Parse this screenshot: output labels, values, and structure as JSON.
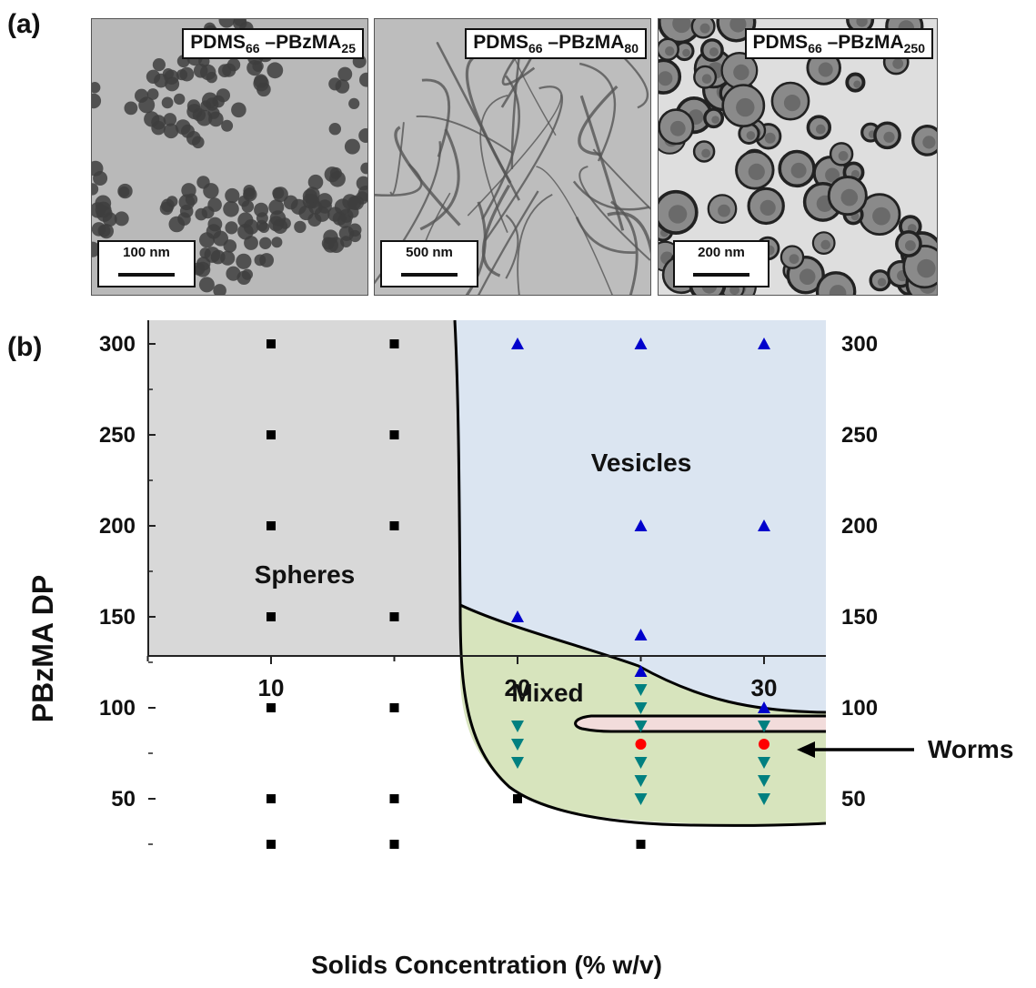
{
  "panel_a_label": "(a)",
  "panel_b_label": "(b)",
  "tem_images": [
    {
      "title_base": "PDMS",
      "title_sub1": "66",
      "title_mid": " –PBzMA",
      "title_sub2": "25",
      "scale": "100 nm",
      "morphology": "spheres"
    },
    {
      "title_base": "PDMS",
      "title_sub1": "66",
      "title_mid": " –PBzMA",
      "title_sub2": "80",
      "scale": "500 nm",
      "morphology": "worms"
    },
    {
      "title_base": "PDMS",
      "title_sub1": "66",
      "title_mid": " –PBzMA",
      "title_sub2": "250",
      "scale": "200 nm",
      "morphology": "vesicles"
    }
  ],
  "colors": {
    "spheres_region": "#d8d8d8",
    "vesicles_region": "#dbe5f1",
    "mixed_region": "#d7e4bd",
    "worms_region": "#f2dcdb",
    "sphere_marker": "#000000",
    "vesicle_marker": "#0000cc",
    "mixed_marker": "#008080",
    "worm_marker": "#ff0000"
  },
  "chart_data": {
    "type": "scatter",
    "title": "",
    "xlabel": "Solids Concentration (% w/v)",
    "ylabel": "PBzMA DP",
    "xlim": [
      5,
      32.5
    ],
    "ylim": [
      5,
      310
    ],
    "xticks": [
      10,
      20,
      30
    ],
    "yticks": [
      50,
      100,
      150,
      200,
      250,
      300
    ],
    "x_minor_step": 5,
    "y_minor_step": 25,
    "right_axis_labels": true,
    "region_labels": [
      "Spheres",
      "Vesicles",
      "Mixed"
    ],
    "callout": "Worms",
    "series": [
      {
        "morphology": "spheres",
        "marker": "square",
        "points": [
          [
            10,
            300
          ],
          [
            10,
            250
          ],
          [
            10,
            200
          ],
          [
            10,
            150
          ],
          [
            10,
            100
          ],
          [
            10,
            50
          ],
          [
            10,
            25
          ],
          [
            15,
            300
          ],
          [
            15,
            250
          ],
          [
            15,
            200
          ],
          [
            15,
            150
          ],
          [
            15,
            100
          ],
          [
            15,
            50
          ],
          [
            15,
            25
          ],
          [
            20,
            50
          ],
          [
            25,
            25
          ]
        ]
      },
      {
        "morphology": "vesicles",
        "marker": "triangle-up",
        "points": [
          [
            20,
            300
          ],
          [
            25,
            300
          ],
          [
            30,
            300
          ],
          [
            25,
            200
          ],
          [
            30,
            200
          ],
          [
            20,
            150
          ],
          [
            25,
            140
          ],
          [
            25,
            120
          ],
          [
            30,
            100
          ]
        ]
      },
      {
        "morphology": "mixed",
        "marker": "triangle-down",
        "points": [
          [
            20,
            90
          ],
          [
            20,
            80
          ],
          [
            20,
            70
          ],
          [
            25,
            110
          ],
          [
            25,
            100
          ],
          [
            25,
            90
          ],
          [
            25,
            70
          ],
          [
            25,
            60
          ],
          [
            25,
            50
          ],
          [
            30,
            90
          ],
          [
            30,
            70
          ],
          [
            30,
            60
          ],
          [
            30,
            50
          ]
        ]
      },
      {
        "morphology": "worms",
        "marker": "circle",
        "points": [
          [
            25,
            80
          ],
          [
            30,
            80
          ]
        ]
      }
    ]
  }
}
